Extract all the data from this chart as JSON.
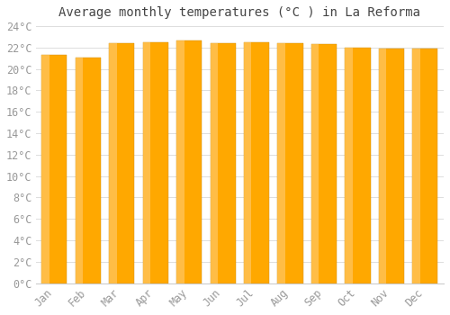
{
  "title": "Average monthly temperatures (°C ) in La Reforma",
  "months": [
    "Jan",
    "Feb",
    "Mar",
    "Apr",
    "May",
    "Jun",
    "Jul",
    "Aug",
    "Sep",
    "Oct",
    "Nov",
    "Dec"
  ],
  "values": [
    21.3,
    21.1,
    22.4,
    22.5,
    22.7,
    22.4,
    22.5,
    22.4,
    22.3,
    22.0,
    21.9,
    21.9
  ],
  "ylim": [
    0,
    24
  ],
  "yticks": [
    0,
    2,
    4,
    6,
    8,
    10,
    12,
    14,
    16,
    18,
    20,
    22,
    24
  ],
  "bar_color_main": "#FFA800",
  "bar_color_light": "#FFD080",
  "bar_color_edge": "#CC8800",
  "background_color": "#ffffff",
  "plot_bg_color": "#ffffff",
  "grid_color": "#dddddd",
  "title_fontsize": 10,
  "tick_fontsize": 8.5,
  "font_family": "monospace",
  "title_color": "#444444",
  "tick_color": "#999999"
}
